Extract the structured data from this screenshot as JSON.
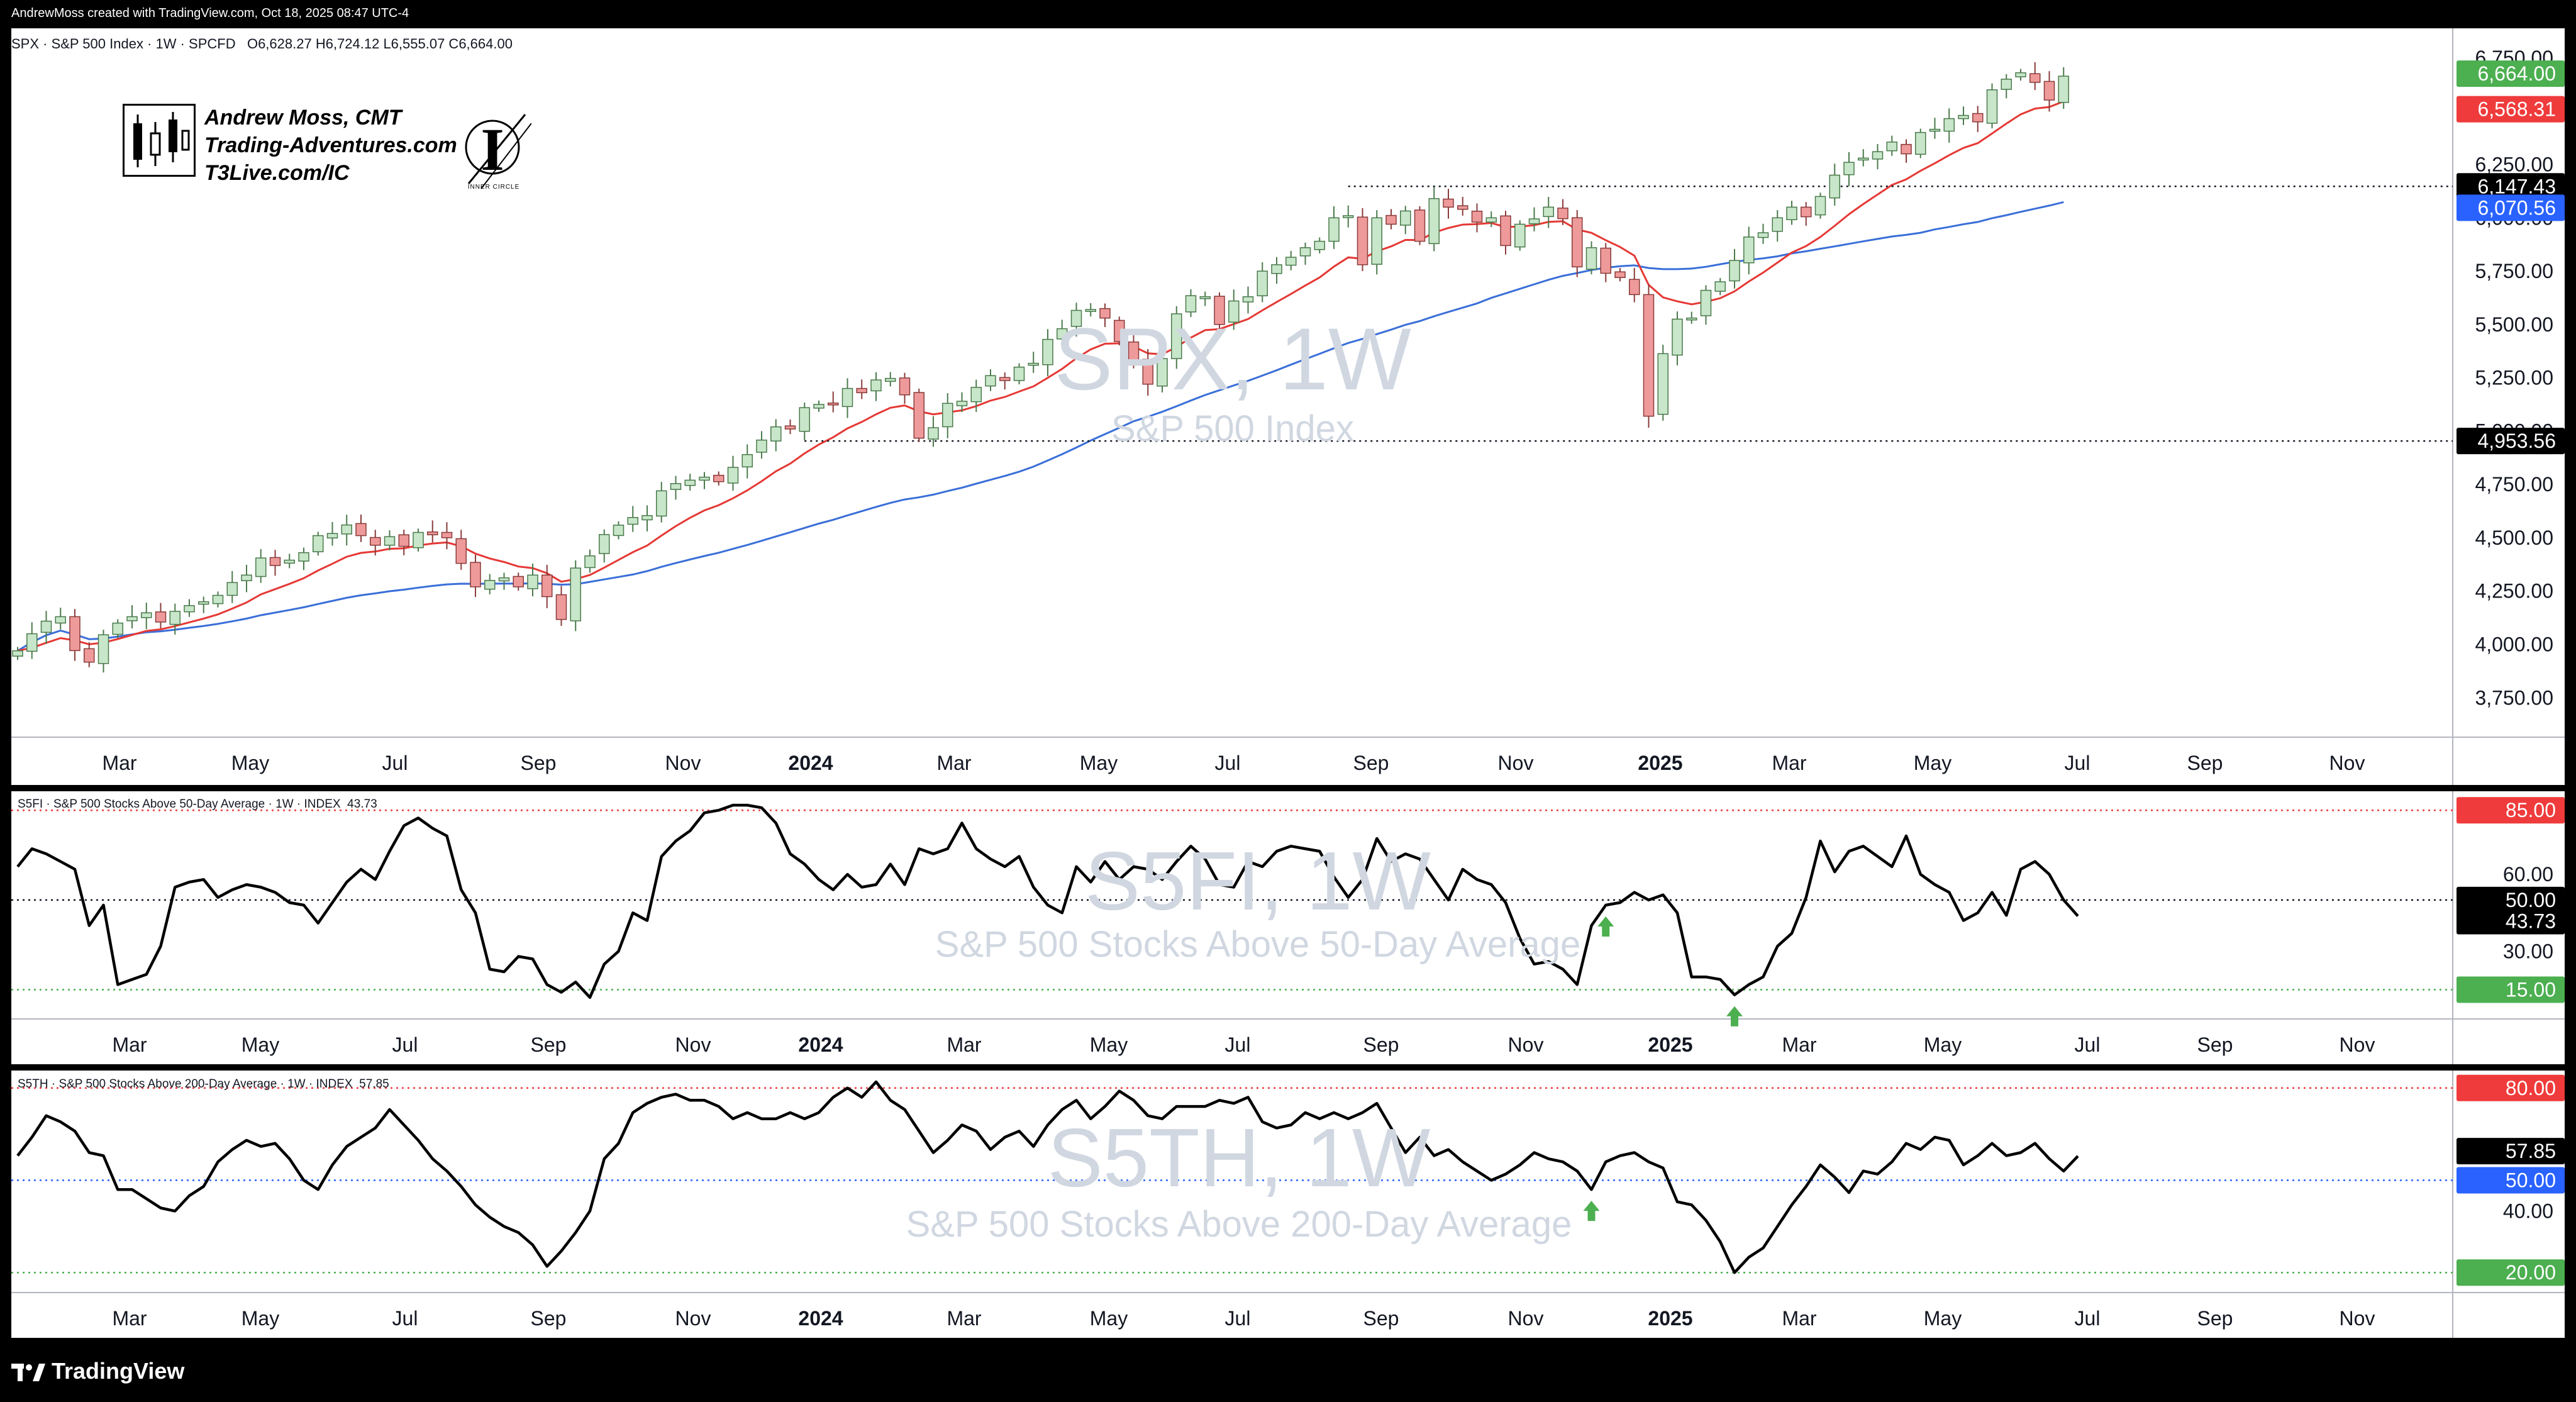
{
  "header": {
    "credit": "AndrewMoss created with TradingView.com, Oct 18, 2025 08:47 UTC-4",
    "symbol_line": "SPX · S&P 500 Index · 1W · SPCFD",
    "ohlc": "O6,628.27  H6,724.12  L6,555.07  C6,664.00"
  },
  "branding": {
    "line1": "Andrew Moss, CMT",
    "line2": "Trading-Adventures.com",
    "line3": "T3Live.com/IC",
    "ic_caption": "INNER CIRCLE"
  },
  "footer": {
    "logo_text": "TradingView"
  },
  "colors": {
    "up_body": "#c8e6c9",
    "up_border": "#4a7a4c",
    "down_body": "#ef9a9a",
    "down_border": "#8a3b3b",
    "ema_short": "#e53935",
    "sma_long": "#3a6fd8",
    "green_label": "#4caf50",
    "red_label": "#ef3b3b",
    "blue_label": "#2962ff"
  },
  "chart_data": [
    {
      "type": "candlestick",
      "title": "SPX, 1W",
      "subtitle": "S&P 500 Index",
      "x_tick_labels": [
        "Mar",
        "May",
        "Jul",
        "Sep",
        "Nov",
        "2024",
        "Mar",
        "May",
        "Jul",
        "Sep",
        "Nov",
        "2025",
        "Mar",
        "May",
        "Jul",
        "Sep",
        "Nov"
      ],
      "y_tick_labels": [
        "3,750.00",
        "4,000.00",
        "4,250.00",
        "4,500.00",
        "4,750.00",
        "5,000.00",
        "5,250.00",
        "5,500.00",
        "5,750.00",
        "6,000.00",
        "6,250.00",
        "6,500.00",
        "6,750.00"
      ],
      "ylim": [
        3630,
        6800
      ],
      "candles_close": [
        3970,
        4050,
        4109,
        4130,
        3971,
        3917,
        4045,
        4100,
        4130,
        4148,
        4105,
        4155,
        4182,
        4200,
        4230,
        4290,
        4325,
        4405,
        4370,
        4395,
        4430,
        4510,
        4520,
        4560,
        4510,
        4465,
        4505,
        4460,
        4525,
        4514,
        4500,
        4380,
        4270,
        4300,
        4312,
        4270,
        4325,
        4224,
        4117,
        4358,
        4415,
        4515,
        4559,
        4595,
        4604,
        4720,
        4754,
        4770,
        4784,
        4763,
        4830,
        4890,
        4958,
        5020,
        5010,
        5110,
        5125,
        5124,
        5200,
        5180,
        5240,
        5247,
        5170,
        4967,
        5016,
        5130,
        5140,
        5205,
        5260,
        5237,
        5300,
        5318,
        5430,
        5480,
        5566,
        5570,
        5530,
        5420,
        5330,
        5220,
        5340,
        5550,
        5635,
        5630,
        5500,
        5610,
        5630,
        5750,
        5780,
        5815,
        5860,
        5890,
        6000,
        6010,
        5780,
        6000,
        5970,
        6032,
        5890,
        6090,
        6050,
        6040,
        5980,
        6000,
        5870,
        5970,
        5995,
        6050,
        5996,
        5770,
        5860,
        5740,
        5720,
        5640,
        5070,
        5363,
        5525,
        5530,
        5660,
        5700,
        5800,
        5910,
        5930,
        6000,
        6050,
        6005,
        6100,
        6200,
        6260,
        6280,
        6310,
        6355,
        6300,
        6400,
        6415,
        6465,
        6480,
        6450,
        6600,
        6650,
        6680,
        6635,
        6552,
        6664
      ],
      "levels": [
        "6,147.43",
        "4,953.56"
      ],
      "series": [
        {
          "name": "",
          "last_value": "6,568.31"
        },
        {
          "name": "",
          "last_value": "6,070.56"
        }
      ],
      "last_price": "6,664.00"
    },
    {
      "type": "line",
      "title": "S5FI, 1W",
      "subtitle": "S&P 500 Stocks Above 50-Day Average",
      "header": "S5FI · S&P 500 Stocks Above 50-Day Average · 1W · INDEX",
      "header_value": "43.73",
      "ylim": [
        9,
        88
      ],
      "y_tick_labels": [
        "30.00",
        "60.00"
      ],
      "ref_lines": [
        "85.00",
        "50.00",
        "15.00"
      ],
      "last_value": "43.73",
      "x_tick_labels": [
        "Mar",
        "May",
        "Jul",
        "Sep",
        "Nov",
        "2024",
        "Mar",
        "May",
        "Jul",
        "Sep",
        "Nov",
        "2025",
        "Mar",
        "May",
        "Jul",
        "Sep",
        "Nov"
      ],
      "values": [
        63,
        70,
        68,
        65,
        62,
        40,
        48,
        17,
        19,
        21,
        32,
        55,
        57,
        58,
        51,
        54,
        56,
        55,
        53,
        49,
        48,
        41,
        49,
        57,
        62,
        58,
        69,
        79,
        82,
        78,
        75,
        54,
        45,
        23,
        22,
        28,
        27,
        17,
        14,
        18,
        12,
        25,
        30,
        45,
        42,
        67,
        73,
        77,
        84,
        85,
        87,
        87,
        86,
        80,
        68,
        64,
        58,
        54,
        60,
        55,
        56,
        64,
        56,
        70,
        68,
        70,
        80,
        70,
        66,
        63,
        67,
        55,
        48,
        45,
        63,
        57,
        65,
        58,
        63,
        62,
        58,
        65,
        71,
        66,
        56,
        55,
        65,
        63,
        69,
        71,
        70,
        69,
        59,
        51,
        58,
        74,
        65,
        68,
        66,
        58,
        50,
        62,
        58,
        56,
        49,
        35,
        25,
        26,
        23,
        17,
        40,
        48,
        49,
        53,
        50,
        52,
        45,
        20,
        20,
        19,
        13,
        17,
        20,
        32,
        37,
        51,
        73,
        61,
        69,
        71,
        67,
        63,
        75,
        60,
        56,
        53,
        42,
        45,
        53,
        44,
        62,
        65,
        60,
        50,
        43.73
      ],
      "markers": [
        {
          "index": 111,
          "direction": "up"
        },
        {
          "index": 120,
          "direction": "up"
        }
      ]
    },
    {
      "type": "line",
      "title": "S5TH, 1W",
      "subtitle": "S&P 500 Stocks Above 200-Day Average",
      "header": "S5TH · S&P 500 Stocks Above 200-Day Average · 1W · INDEX",
      "header_value": "57.85",
      "ylim": [
        18,
        82
      ],
      "y_tick_labels": [
        "40.00"
      ],
      "ref_lines": [
        "80.00",
        "50.00",
        "20.00"
      ],
      "last_value": "57.85",
      "x_tick_labels": [
        "Mar",
        "May",
        "Jul",
        "Sep",
        "Nov",
        "2024",
        "Mar",
        "May",
        "Jul",
        "Sep",
        "Nov",
        "2025",
        "Mar",
        "May",
        "Jul",
        "Sep",
        "Nov"
      ],
      "values": [
        58,
        64,
        71,
        69,
        66,
        59,
        58,
        47,
        47,
        44,
        41,
        40,
        45,
        48,
        56,
        60,
        63,
        61,
        62,
        57,
        50,
        47,
        55,
        61,
        64,
        67,
        73,
        68,
        63,
        57,
        53,
        48,
        42,
        38,
        35,
        33,
        29,
        22,
        27,
        33,
        40,
        57,
        62,
        72,
        75,
        77,
        78,
        76,
        76,
        74,
        70,
        72,
        70,
        70,
        72,
        70,
        72,
        77,
        80,
        77,
        82,
        76,
        73,
        66,
        59,
        63,
        68,
        66,
        60,
        64,
        66,
        61,
        68,
        73,
        76,
        70,
        74,
        79,
        76,
        71,
        70,
        74,
        74,
        74,
        76,
        75,
        77,
        69,
        67,
        68,
        72,
        70,
        72,
        70,
        72,
        75,
        67,
        59,
        64,
        58,
        60,
        56,
        53,
        50,
        52,
        55,
        59,
        57,
        56,
        53,
        47,
        56,
        58,
        59,
        56,
        54,
        43,
        42,
        37,
        30,
        20,
        25,
        28,
        35,
        42,
        48,
        55,
        51,
        46,
        53,
        52,
        56,
        62,
        60,
        64,
        63,
        55,
        58,
        62,
        58,
        59,
        62,
        57,
        53,
        57.85
      ],
      "markers": [
        {
          "index": 110,
          "direction": "up"
        }
      ]
    }
  ]
}
